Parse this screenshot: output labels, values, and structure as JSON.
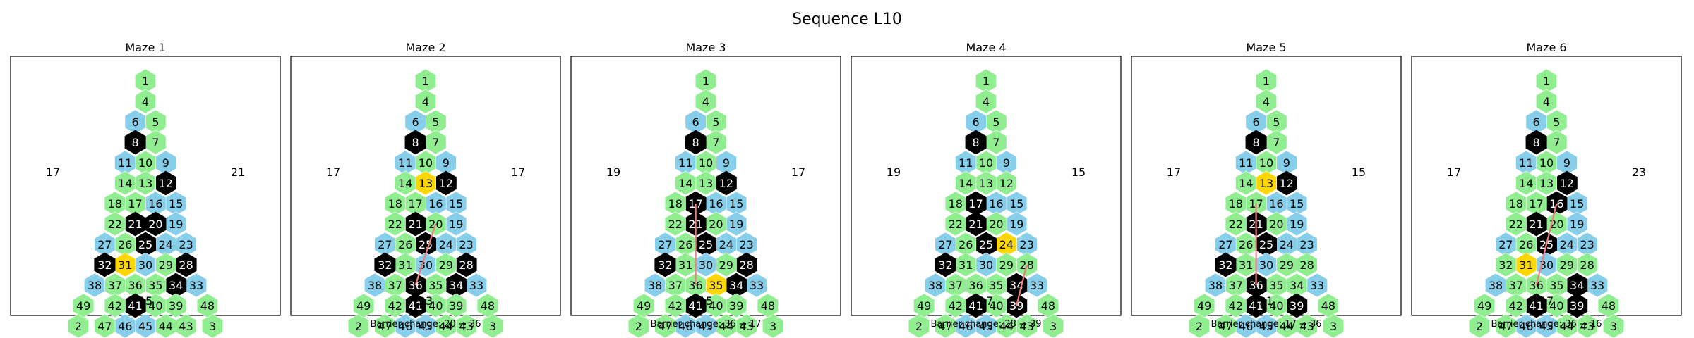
{
  "title": "Sequence L10",
  "colors": {
    "open": "#90ee90",
    "alt": "#87ceeb",
    "wall": "#000000",
    "target": "#ffd700",
    "path": "#f08080"
  },
  "mazes": [
    {
      "title": "Maze 1",
      "left_label": "17",
      "right_label": "21",
      "bottom_label": "15",
      "caption": "",
      "highlight": "31",
      "walls": [
        "8",
        "12",
        "21",
        "25",
        "20",
        "32",
        "28",
        "34",
        "41"
      ],
      "line": null
    },
    {
      "title": "Maze 2",
      "left_label": "17",
      "right_label": "17",
      "bottom_label": "23",
      "caption": "Barrier change: 20 → 36",
      "highlight": "13",
      "walls": [
        "8",
        "12",
        "21",
        "25",
        "32",
        "28",
        "34",
        "41",
        "36"
      ],
      "line": [
        "20",
        "36"
      ]
    },
    {
      "title": "Maze 3",
      "left_label": "19",
      "right_label": "17",
      "bottom_label": "15",
      "caption": "Barrier change: 36 → 17",
      "highlight": "35",
      "walls": [
        "8",
        "12",
        "21",
        "25",
        "32",
        "28",
        "34",
        "41",
        "17"
      ],
      "line": [
        "36",
        "17"
      ]
    },
    {
      "title": "Maze 4",
      "left_label": "19",
      "right_label": "15",
      "bottom_label": "17",
      "caption": "Barrier change: 28 → 39",
      "highlight": "24",
      "walls": [
        "8",
        "17",
        "21",
        "25",
        "32",
        "34",
        "41",
        "39"
      ],
      "line": [
        "28",
        "39"
      ]
    },
    {
      "title": "Maze 5",
      "left_label": "17",
      "right_label": "15",
      "bottom_label": "21",
      "caption": "Barrier change: 17 → 36",
      "highlight": "13",
      "walls": [
        "8",
        "12",
        "21",
        "25",
        "32",
        "36",
        "41",
        "39"
      ],
      "line": [
        "17",
        "36"
      ]
    },
    {
      "title": "Maze 6",
      "left_label": "17",
      "right_label": "23",
      "bottom_label": "17",
      "caption": "Barrier change: 36 → 16",
      "highlight": "31",
      "walls": [
        "8",
        "12",
        "21",
        "25",
        "16",
        "34",
        "41",
        "39"
      ],
      "line": [
        "36",
        "16"
      ]
    }
  ],
  "rows": [
    [
      [
        "1",
        "o"
      ]
    ],
    [
      [
        "4",
        "o"
      ]
    ],
    [
      [
        "6",
        "a"
      ],
      [
        "5",
        "o"
      ]
    ],
    [
      [
        "8",
        "o"
      ],
      [
        "7",
        "o"
      ]
    ],
    [
      [
        "11",
        "a"
      ],
      [
        "10",
        "o"
      ],
      [
        "9",
        "a"
      ]
    ],
    [
      [
        "14",
        "o"
      ],
      [
        "13",
        "o"
      ],
      [
        "12",
        "o"
      ]
    ],
    [
      [
        "18",
        "o"
      ],
      [
        "17",
        "o"
      ],
      [
        "16",
        "a"
      ],
      [
        "15",
        "a"
      ]
    ],
    [
      [
        "22",
        "o"
      ],
      [
        "21",
        "o"
      ],
      [
        "20",
        "o"
      ],
      [
        "19",
        "a"
      ]
    ],
    [
      [
        "27",
        "a"
      ],
      [
        "26",
        "o"
      ],
      [
        "25",
        "o"
      ],
      [
        "24",
        "a"
      ],
      [
        "23",
        "a"
      ]
    ],
    [
      [
        "32",
        "o"
      ],
      [
        "31",
        "o"
      ],
      [
        "30",
        "a"
      ],
      [
        "29",
        "o"
      ],
      [
        "28",
        "o"
      ]
    ],
    [
      [
        "38",
        "a"
      ],
      [
        "37",
        "o"
      ],
      [
        "36",
        "o"
      ],
      [
        "35",
        "o"
      ],
      [
        "34",
        "o"
      ],
      [
        "33",
        "a"
      ]
    ],
    [
      [
        "49",
        "o"
      ],
      [
        "42",
        "o"
      ],
      [
        "41",
        "o"
      ],
      [
        "40",
        "o"
      ],
      [
        "39",
        "o"
      ],
      [
        "48",
        "o"
      ]
    ],
    [
      [
        "2",
        "o"
      ],
      [
        "47",
        "o"
      ],
      [
        "46",
        "a"
      ],
      [
        "45",
        "a"
      ],
      [
        "44",
        "o"
      ],
      [
        "43",
        "o"
      ],
      [
        "3",
        "o"
      ]
    ]
  ]
}
